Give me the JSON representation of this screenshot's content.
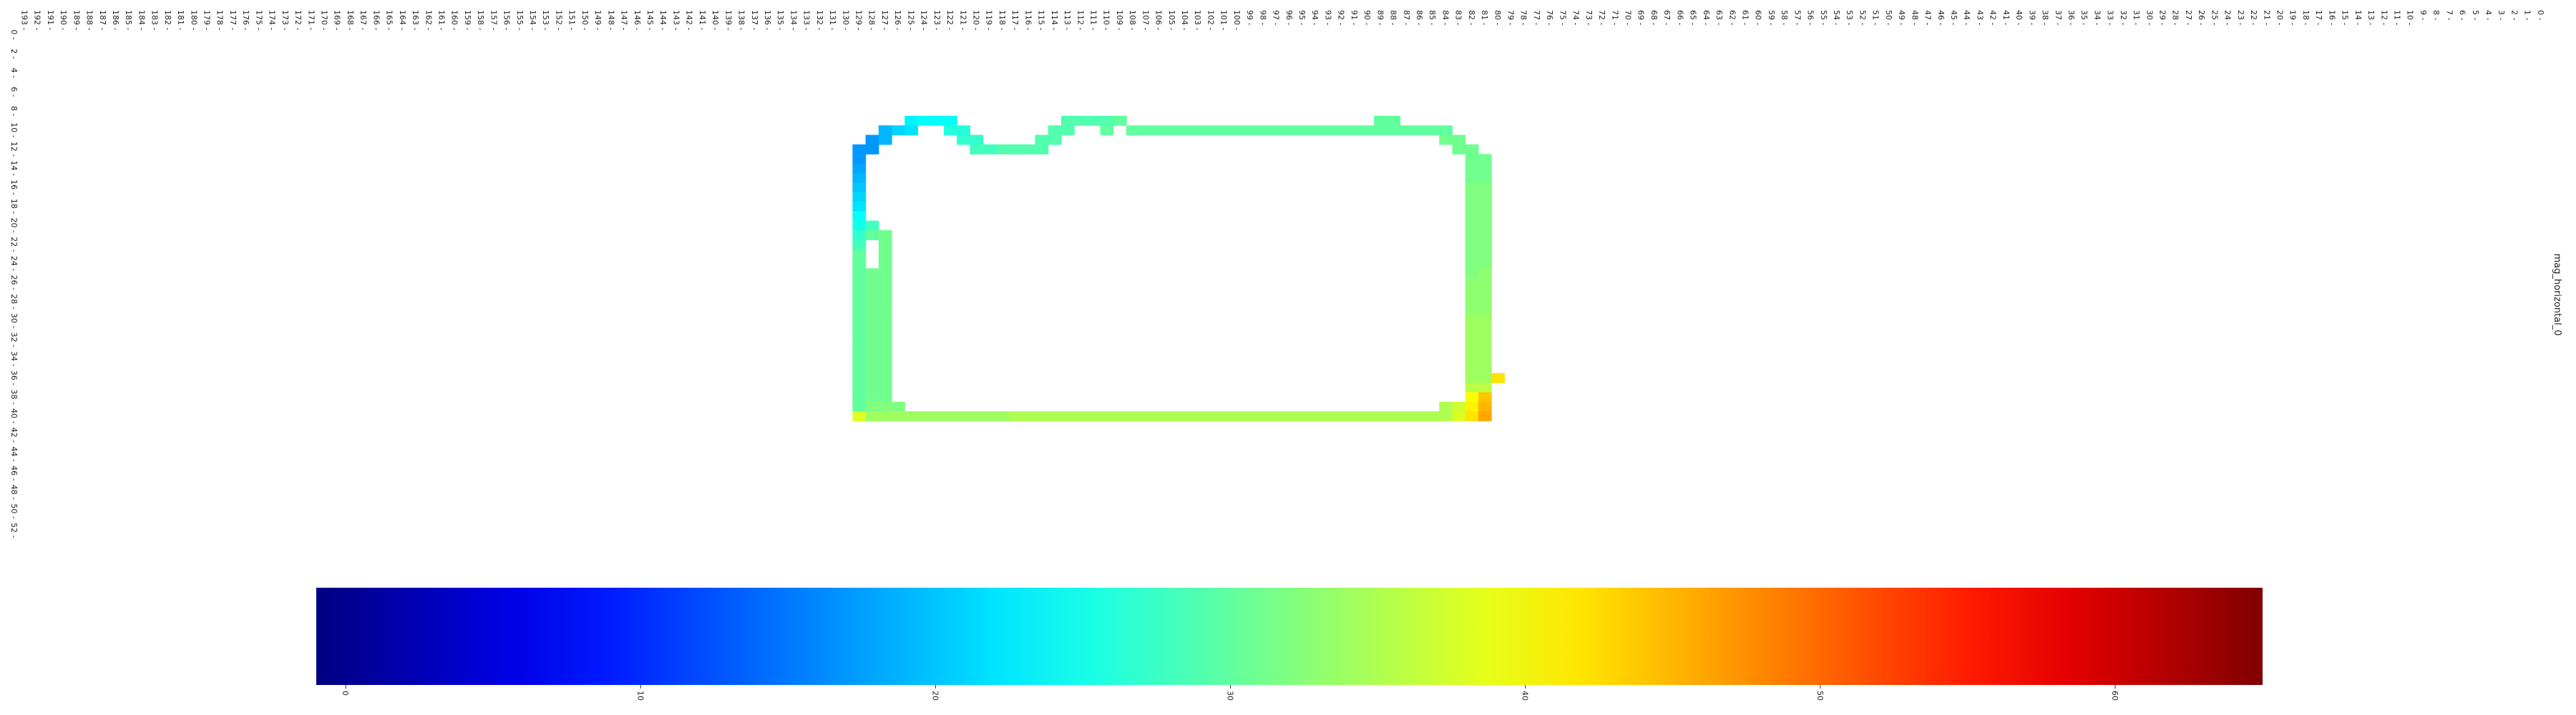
{
  "chart_data": {
    "type": "heatmap",
    "colormap": "jet",
    "series_label": "mag_horizontal_0",
    "y_range": [
      0,
      193
    ],
    "x_range": [
      0,
      52
    ],
    "y_tick_labels": [
      "0",
      "1",
      "2",
      "3",
      "4",
      "5",
      "6",
      "7",
      "8",
      "9",
      "10",
      "11",
      "12",
      "13",
      "14",
      "15",
      "16",
      "17",
      "18",
      "19",
      "20",
      "21",
      "22",
      "23",
      "24",
      "25",
      "26",
      "27",
      "28",
      "29",
      "30",
      "31",
      "32",
      "33",
      "34",
      "35",
      "36",
      "37",
      "38",
      "39",
      "40",
      "41",
      "42",
      "43",
      "44",
      "45",
      "46",
      "47",
      "48",
      "49",
      "50",
      "51",
      "52",
      "53",
      "54",
      "55",
      "56",
      "57",
      "58",
      "59",
      "60",
      "61",
      "62",
      "63",
      "64",
      "65",
      "66",
      "67",
      "68",
      "69",
      "70",
      "71",
      "72",
      "73",
      "74",
      "75",
      "76",
      "77",
      "78",
      "79",
      "80",
      "81",
      "82",
      "83",
      "84",
      "85",
      "86",
      "87",
      "88",
      "89",
      "90",
      "91",
      "92",
      "93",
      "94",
      "95",
      "96",
      "97",
      "98",
      "99",
      "100",
      "101",
      "102",
      "103",
      "104",
      "105",
      "106",
      "107",
      "108",
      "109",
      "110",
      "111",
      "112",
      "113",
      "114",
      "115",
      "116",
      "117",
      "118",
      "119",
      "120",
      "121",
      "122",
      "123",
      "124",
      "125",
      "126",
      "127",
      "128",
      "129",
      "130",
      "131",
      "132",
      "133",
      "134",
      "135",
      "136",
      "137",
      "138",
      "139",
      "140",
      "141",
      "142",
      "143",
      "144",
      "145",
      "146",
      "147",
      "148",
      "149",
      "150",
      "151",
      "152",
      "153",
      "154",
      "155",
      "156",
      "157",
      "158",
      "159",
      "160",
      "161",
      "162",
      "163",
      "164",
      "165",
      "166",
      "167",
      "168",
      "169",
      "170",
      "171",
      "172",
      "173",
      "174",
      "175",
      "176",
      "177",
      "178",
      "179",
      "180",
      "181",
      "182",
      "183",
      "184",
      "185",
      "186",
      "187",
      "188",
      "189",
      "190",
      "191",
      "192",
      "193"
    ],
    "x_tick_labels": [
      "0",
      "2",
      "4",
      "6",
      "8",
      "10",
      "12",
      "14",
      "16",
      "18",
      "20",
      "22",
      "24",
      "26",
      "28",
      "30",
      "32",
      "34",
      "36",
      "38",
      "40",
      "42",
      "44",
      "46",
      "48",
      "50",
      "52"
    ],
    "colorbar": {
      "range": [
        -1,
        65
      ],
      "ticks": [
        0,
        10,
        20,
        30,
        40,
        50,
        60
      ],
      "tick_labels": [
        "0",
        "10",
        "20",
        "30",
        "40",
        "50",
        "60"
      ]
    },
    "cells": [
      [
        129,
        12,
        17
      ],
      [
        129,
        13,
        17
      ],
      [
        129,
        14,
        18
      ],
      [
        129,
        15,
        19
      ],
      [
        129,
        16,
        20
      ],
      [
        129,
        17,
        21
      ],
      [
        129,
        18,
        22
      ],
      [
        129,
        19,
        24
      ],
      [
        129,
        20,
        25
      ],
      [
        129,
        21,
        27
      ],
      [
        129,
        22,
        28
      ],
      [
        129,
        23,
        30
      ],
      [
        129,
        24,
        30
      ],
      [
        129,
        25,
        30
      ],
      [
        129,
        26,
        30
      ],
      [
        129,
        27,
        30
      ],
      [
        129,
        28,
        30
      ],
      [
        129,
        29,
        30
      ],
      [
        129,
        30,
        30
      ],
      [
        129,
        31,
        30
      ],
      [
        129,
        32,
        30
      ],
      [
        129,
        33,
        30
      ],
      [
        129,
        34,
        30
      ],
      [
        129,
        35,
        30
      ],
      [
        129,
        36,
        30
      ],
      [
        129,
        37,
        30
      ],
      [
        129,
        38,
        30
      ],
      [
        129,
        39,
        30
      ],
      [
        129,
        40,
        38
      ],
      [
        128,
        11,
        17
      ],
      [
        128,
        12,
        17
      ],
      [
        128,
        20,
        28
      ],
      [
        128,
        21,
        30
      ],
      [
        128,
        25,
        31
      ],
      [
        128,
        26,
        31
      ],
      [
        128,
        27,
        31
      ],
      [
        128,
        28,
        31
      ],
      [
        128,
        29,
        31
      ],
      [
        128,
        30,
        31
      ],
      [
        128,
        31,
        31
      ],
      [
        128,
        32,
        31
      ],
      [
        128,
        33,
        31
      ],
      [
        128,
        34,
        31
      ],
      [
        128,
        35,
        31
      ],
      [
        128,
        36,
        31
      ],
      [
        128,
        37,
        31
      ],
      [
        128,
        38,
        31
      ],
      [
        128,
        39,
        32
      ],
      [
        128,
        40,
        34
      ],
      [
        127,
        10,
        19
      ],
      [
        127,
        11,
        19
      ],
      [
        127,
        21,
        31
      ],
      [
        127,
        22,
        31
      ],
      [
        127,
        23,
        31
      ],
      [
        127,
        24,
        31
      ],
      [
        127,
        25,
        31
      ],
      [
        127,
        26,
        31
      ],
      [
        127,
        27,
        31
      ],
      [
        127,
        28,
        31
      ],
      [
        127,
        29,
        31
      ],
      [
        127,
        30,
        31
      ],
      [
        127,
        31,
        31
      ],
      [
        127,
        32,
        31
      ],
      [
        127,
        33,
        31
      ],
      [
        127,
        34,
        31
      ],
      [
        127,
        35,
        31
      ],
      [
        127,
        36,
        31
      ],
      [
        127,
        37,
        31
      ],
      [
        127,
        38,
        31
      ],
      [
        127,
        39,
        32
      ],
      [
        127,
        40,
        34
      ],
      [
        126,
        10,
        21
      ],
      [
        126,
        39,
        32
      ],
      [
        126,
        40,
        34
      ],
      [
        125,
        9,
        23
      ],
      [
        125,
        10,
        22
      ],
      [
        125,
        40,
        34
      ],
      [
        124,
        9,
        24
      ],
      [
        124,
        40,
        34
      ],
      [
        123,
        9,
        24
      ],
      [
        123,
        40,
        34
      ],
      [
        122,
        9,
        24
      ],
      [
        122,
        10,
        26
      ],
      [
        122,
        40,
        34
      ],
      [
        121,
        10,
        26
      ],
      [
        121,
        11,
        27
      ],
      [
        121,
        40,
        34
      ],
      [
        120,
        11,
        27
      ],
      [
        120,
        12,
        28
      ],
      [
        120,
        40,
        34
      ],
      [
        119,
        12,
        28
      ],
      [
        119,
        40,
        34
      ],
      [
        118,
        12,
        29
      ],
      [
        118,
        40,
        34
      ],
      [
        117,
        12,
        29
      ],
      [
        117,
        40,
        35
      ],
      [
        116,
        12,
        29
      ],
      [
        116,
        40,
        35
      ],
      [
        115,
        11,
        29
      ],
      [
        115,
        12,
        29
      ],
      [
        115,
        40,
        35
      ],
      [
        114,
        10,
        29
      ],
      [
        114,
        11,
        29
      ],
      [
        114,
        40,
        35
      ],
      [
        113,
        9,
        29
      ],
      [
        113,
        10,
        29
      ],
      [
        113,
        40,
        35
      ],
      [
        112,
        9,
        29
      ],
      [
        112,
        40,
        35
      ],
      [
        111,
        9,
        29
      ],
      [
        111,
        40,
        35
      ],
      [
        110,
        9,
        29
      ],
      [
        110,
        10,
        30
      ],
      [
        110,
        40,
        35
      ],
      [
        109,
        9,
        30
      ],
      [
        109,
        40,
        35
      ],
      [
        108,
        10,
        30
      ],
      [
        108,
        40,
        35
      ],
      [
        107,
        10,
        30
      ],
      [
        107,
        40,
        35
      ],
      [
        106,
        10,
        30
      ],
      [
        106,
        40,
        35
      ],
      [
        105,
        10,
        30
      ],
      [
        105,
        40,
        35
      ],
      [
        104,
        10,
        30
      ],
      [
        104,
        40,
        35
      ],
      [
        103,
        10,
        30
      ],
      [
        103,
        40,
        35
      ],
      [
        102,
        10,
        30
      ],
      [
        102,
        40,
        35
      ],
      [
        101,
        10,
        30
      ],
      [
        101,
        40,
        35
      ],
      [
        100,
        10,
        30
      ],
      [
        100,
        40,
        35
      ],
      [
        99,
        10,
        30
      ],
      [
        99,
        40,
        35
      ],
      [
        98,
        10,
        30
      ],
      [
        98,
        40,
        35
      ],
      [
        97,
        10,
        30
      ],
      [
        97,
        40,
        35
      ],
      [
        96,
        10,
        30
      ],
      [
        96,
        40,
        35
      ],
      [
        95,
        10,
        30
      ],
      [
        95,
        40,
        35
      ],
      [
        94,
        10,
        30
      ],
      [
        94,
        40,
        35
      ],
      [
        93,
        10,
        30
      ],
      [
        93,
        40,
        35
      ],
      [
        92,
        10,
        30
      ],
      [
        92,
        40,
        35
      ],
      [
        91,
        10,
        30
      ],
      [
        91,
        40,
        35
      ],
      [
        90,
        10,
        30
      ],
      [
        90,
        40,
        35
      ],
      [
        89,
        9,
        30
      ],
      [
        89,
        10,
        30
      ],
      [
        89,
        40,
        35
      ],
      [
        88,
        9,
        30
      ],
      [
        88,
        10,
        30
      ],
      [
        88,
        40,
        35
      ],
      [
        87,
        10,
        30
      ],
      [
        87,
        40,
        35
      ],
      [
        86,
        10,
        30
      ],
      [
        86,
        40,
        35
      ],
      [
        85,
        10,
        30
      ],
      [
        85,
        40,
        35
      ],
      [
        84,
        10,
        30
      ],
      [
        84,
        11,
        31
      ],
      [
        84,
        39,
        35
      ],
      [
        84,
        40,
        35
      ],
      [
        83,
        11,
        31
      ],
      [
        83,
        12,
        31
      ],
      [
        83,
        39,
        37
      ],
      [
        83,
        40,
        38
      ],
      [
        82,
        12,
        31
      ],
      [
        82,
        13,
        31
      ],
      [
        82,
        14,
        31
      ],
      [
        82,
        15,
        31
      ],
      [
        82,
        16,
        32
      ],
      [
        82,
        17,
        32
      ],
      [
        82,
        18,
        32
      ],
      [
        82,
        19,
        32
      ],
      [
        82,
        20,
        32
      ],
      [
        82,
        21,
        32
      ],
      [
        82,
        22,
        32
      ],
      [
        82,
        23,
        32
      ],
      [
        82,
        24,
        32
      ],
      [
        82,
        25,
        32
      ],
      [
        82,
        26,
        33
      ],
      [
        82,
        27,
        33
      ],
      [
        82,
        28,
        33
      ],
      [
        82,
        29,
        33
      ],
      [
        82,
        30,
        34
      ],
      [
        82,
        31,
        34
      ],
      [
        82,
        32,
        34
      ],
      [
        82,
        33,
        34
      ],
      [
        82,
        34,
        34
      ],
      [
        82,
        35,
        34
      ],
      [
        82,
        36,
        34
      ],
      [
        82,
        37,
        36
      ],
      [
        82,
        38,
        40
      ],
      [
        82,
        39,
        41
      ],
      [
        82,
        40,
        42
      ],
      [
        81,
        13,
        31
      ],
      [
        81,
        14,
        31
      ],
      [
        81,
        15,
        31
      ],
      [
        81,
        16,
        32
      ],
      [
        81,
        17,
        32
      ],
      [
        81,
        18,
        32
      ],
      [
        81,
        19,
        32
      ],
      [
        81,
        20,
        32
      ],
      [
        81,
        21,
        32
      ],
      [
        81,
        22,
        32
      ],
      [
        81,
        23,
        32
      ],
      [
        81,
        24,
        32
      ],
      [
        81,
        25,
        33
      ],
      [
        81,
        26,
        33
      ],
      [
        81,
        27,
        33
      ],
      [
        81,
        28,
        33
      ],
      [
        81,
        29,
        33
      ],
      [
        81,
        30,
        34
      ],
      [
        81,
        31,
        34
      ],
      [
        81,
        32,
        34
      ],
      [
        81,
        33,
        34
      ],
      [
        81,
        34,
        34
      ],
      [
        81,
        35,
        34
      ],
      [
        81,
        36,
        34
      ],
      [
        81,
        37,
        36
      ],
      [
        81,
        38,
        44
      ],
      [
        81,
        39,
        45
      ],
      [
        81,
        40,
        46
      ],
      [
        80,
        36,
        42
      ]
    ]
  }
}
